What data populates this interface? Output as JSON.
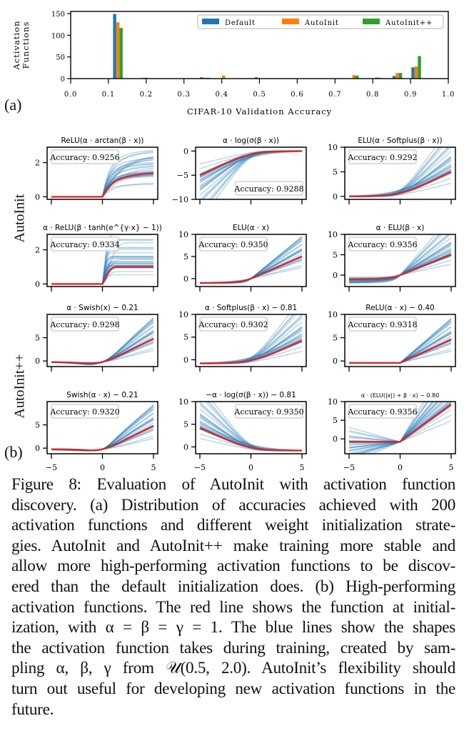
{
  "chart_data": [
    {
      "type": "bar",
      "panel": "(a)",
      "title": "",
      "xlabel": "CIFAR-10 Validation Accuracy",
      "ylabel": "Activation Functions",
      "xlim": [
        0.0,
        1.0
      ],
      "ylim": [
        0,
        155
      ],
      "xticks": [
        "0.0",
        "0.1",
        "0.2",
        "0.3",
        "0.4",
        "0.5",
        "0.6",
        "0.7",
        "0.8",
        "0.9",
        "1.0"
      ],
      "yticks": [
        "0",
        "50",
        "100",
        "150"
      ],
      "legend": {
        "placement": "top-right",
        "entries": [
          "Default",
          "AutoInit",
          "AutoInit++"
        ]
      },
      "categories": [
        0.1,
        0.2,
        0.3,
        0.4,
        0.5,
        0.6,
        0.7,
        0.8,
        0.85,
        0.9
      ],
      "bin_centers": [
        0.125,
        0.19,
        0.355,
        0.405,
        0.5,
        0.6,
        0.75,
        0.81,
        0.865,
        0.915
      ],
      "series": [
        {
          "name": "Default",
          "color": "#1f77b4",
          "values": [
            149,
            0,
            3,
            0,
            3,
            0,
            0,
            0,
            6,
            26
          ]
        },
        {
          "name": "AutoInit",
          "color": "#ff7f0e",
          "values": [
            130,
            2,
            2,
            7,
            0,
            0,
            8,
            3,
            13,
            28
          ]
        },
        {
          "name": "AutoInit++",
          "color": "#2ca02c",
          "values": [
            117,
            2,
            2,
            0,
            0,
            0,
            7,
            2,
            13,
            52
          ]
        }
      ]
    },
    {
      "type": "line",
      "panel": "(b)",
      "row_groups": [
        "AutoInit",
        "AutoInit++"
      ],
      "xticks": [
        "−5",
        "0",
        "5"
      ],
      "xlim": [
        -5,
        5
      ],
      "legend": {
        "red_line": "function at initialization (α = β = γ = 1)",
        "blue_lines": "sampled α, β, γ from U(0.5, 2.0)"
      },
      "colors": {
        "init": "#d62728",
        "sampled": "#1f77b4"
      },
      "subplots": [
        {
          "title": "ReLU(α · arctan(β · x))",
          "accuracy_label": "Accuracy: 0.9256",
          "fn": "relu_arctan",
          "ylim": [
            -0.15,
            2.9
          ],
          "yticks": [
            "0",
            "2"
          ],
          "ytick_values": [
            0,
            2
          ],
          "legend_placement": "top-left"
        },
        {
          "title": "α · log(σ(β · x))",
          "accuracy_label": "Accuracy: 0.9288",
          "fn": "alpha_logsig",
          "ylim": [
            -10,
            0.8
          ],
          "yticks": [
            "−10",
            "−5",
            "0"
          ],
          "ytick_values": [
            -10,
            -5,
            0
          ],
          "legend_placement": "bottom-right"
        },
        {
          "title": "ELU(α · Softplus(β · x))",
          "accuracy_label": "Accuracy: 0.9292",
          "fn": "elu_softplus",
          "ylim": [
            -0.6,
            10
          ],
          "yticks": [
            "0",
            "5",
            "10"
          ],
          "ytick_values": [
            0,
            5,
            10
          ],
          "legend_placement": "top-left"
        },
        {
          "title": "α · ReLU(β · tanh(e^{γ·x} − 1))",
          "accuracy_label": "Accuracy: 0.9334",
          "fn": "relu_tanh_exp",
          "ylim": [
            -0.15,
            2.9
          ],
          "yticks": [
            "0",
            "2"
          ],
          "ytick_values": [
            0,
            2
          ],
          "legend_placement": "top-left"
        },
        {
          "title": "ELU(α · x)",
          "accuracy_label": "Accuracy: 0.9350",
          "fn": "elu_ax",
          "ylim": [
            -1.8,
            10
          ],
          "yticks": [
            "0",
            "5",
            "10"
          ],
          "ytick_values": [
            0,
            5,
            10
          ],
          "legend_placement": "top-left"
        },
        {
          "title": "α · ELU(β · x)",
          "accuracy_label": "Accuracy: 0.9356",
          "fn": "a_elu_bx",
          "ylim": [
            -2.8,
            10
          ],
          "yticks": [
            "0",
            "5",
            "10"
          ],
          "ytick_values": [
            0,
            5,
            10
          ],
          "legend_placement": "top-left"
        },
        {
          "title": "α · Swish(x) − 0.21",
          "accuracy_label": "Accuracy: 0.9298",
          "fn": "a_swish",
          "ylim": [
            -1.2,
            10
          ],
          "yticks": [
            "0",
            "5"
          ],
          "ytick_values": [
            0,
            5
          ],
          "legend_placement": "top-left"
        },
        {
          "title": "α · Softplus(β · x) − 0.81",
          "accuracy_label": "Accuracy: 0.9302",
          "fn": "a_softplus",
          "ylim": [
            -1.5,
            10
          ],
          "yticks": [
            "0",
            "5",
            "10"
          ],
          "ytick_values": [
            0,
            5,
            10
          ],
          "legend_placement": "top-left"
        },
        {
          "title": "ReLU(α · x) − 0.40",
          "accuracy_label": "Accuracy: 0.9318",
          "fn": "relu_ax",
          "ylim": [
            -1.2,
            10
          ],
          "yticks": [
            "0",
            "5",
            "10"
          ],
          "ytick_values": [
            0,
            5,
            10
          ],
          "legend_placement": "top-left"
        },
        {
          "title": "Swish(α · x) − 0.21",
          "accuracy_label": "Accuracy: 0.9320",
          "fn": "swish_ax",
          "ylim": [
            -1.2,
            10
          ],
          "yticks": [
            "0",
            "5"
          ],
          "ytick_values": [
            0,
            5
          ],
          "legend_placement": "top-left"
        },
        {
          "title": "−α · log(σ(β · x)) − 0.81",
          "accuracy_label": "Accuracy: 0.9350",
          "fn": "neg_logsig",
          "ylim": [
            -1.5,
            10
          ],
          "yticks": [
            "0",
            "5",
            "10"
          ],
          "ytick_values": [
            0,
            5,
            10
          ],
          "legend_placement": "top-right"
        },
        {
          "title": "α · (ELU(|x|) + β · x) − 0.80",
          "accuracy_label": "Accuracy: 0.9356",
          "fn": "elu_abs",
          "ylim": [
            -4,
            10
          ],
          "yticks": [
            "0",
            "5",
            "10"
          ],
          "ytick_values": [
            0,
            5,
            10
          ],
          "legend_placement": "top-left"
        }
      ]
    }
  ],
  "labels": {
    "panel_a": "(a)",
    "panel_b": "(b)",
    "row_autoinit": "AutoInit",
    "row_autoinitpp": "AutoInit++"
  },
  "caption": {
    "lines": [
      "Figure 8: Evaluation of AutoInit with activation function",
      "discovery. (a) Distribution of accuracies achieved with 200",
      "activation functions and different weight initialization strate-",
      "gies. AutoInit and AutoInit++ make training more stable and",
      "allow more high-performing activation functions to be discov-",
      "ered than the default initialization does. (b) High-performing",
      "activation functions. The red line shows the function at initial-",
      "ization, with α = β = γ = 1. The blue lines show the shapes",
      "the activation function takes during training, created by sam-",
      "pling α, β, γ from 𝒰(0.5, 2.0). AutoInit’s flexibility should",
      "turn out useful for developing new activation functions in the",
      "future."
    ]
  }
}
